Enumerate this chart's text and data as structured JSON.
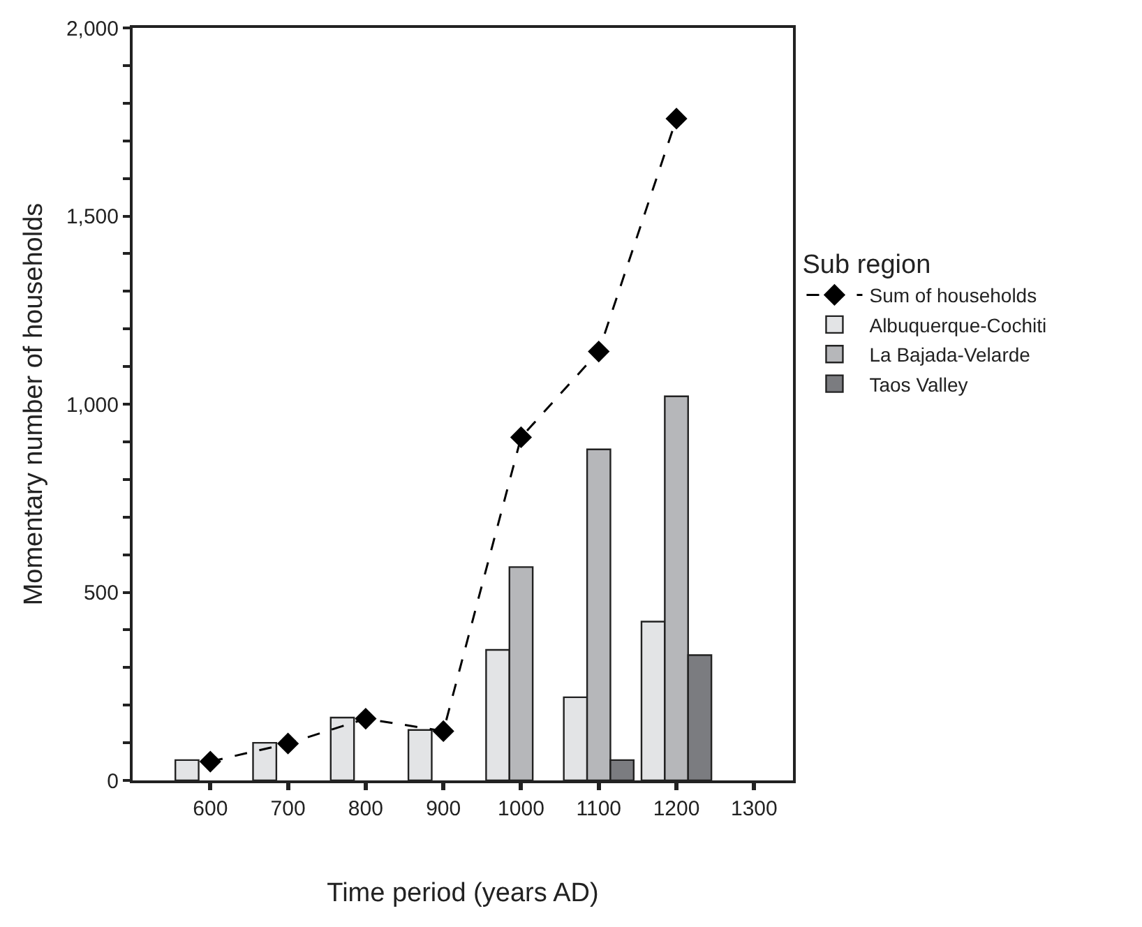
{
  "chart_data": {
    "type": "bar",
    "xlabel": "Time period (years AD)",
    "ylabel": "Momentary number of households",
    "legend_title": "Sub region",
    "categories": [
      "600",
      "700",
      "800",
      "900",
      "1000",
      "1100",
      "1200",
      "1300"
    ],
    "series": [
      {
        "name": "Sum of households",
        "type": "line",
        "color": "#000000",
        "marker": "diamond",
        "line_style": "dashed",
        "values": [
          50,
          98,
          164,
          131,
          912,
          1140,
          1759,
          null
        ]
      },
      {
        "name": "Albuquerque-Cochiti",
        "color": "#e3e4e6",
        "values": [
          54,
          100,
          167,
          134,
          347,
          221,
          422,
          null
        ]
      },
      {
        "name": "La Bajada-Velarde",
        "color": "#b6b7ba",
        "values": [
          null,
          null,
          null,
          null,
          567,
          880,
          1021,
          null
        ]
      },
      {
        "name": "Taos Valley",
        "color": "#7b7c80",
        "values": [
          null,
          null,
          null,
          null,
          null,
          54,
          333,
          null
        ]
      }
    ],
    "ylim": [
      0,
      2000
    ],
    "yticks": [
      0,
      {
        "value": 100,
        "label": null
      },
      {
        "value": 200,
        "label": null
      },
      {
        "value": 300,
        "label": null
      },
      {
        "value": 400,
        "label": null
      },
      {
        "value": 500,
        "label": "500"
      },
      {
        "value": 600,
        "label": null
      },
      {
        "value": 700,
        "label": null
      },
      {
        "value": 800,
        "label": null
      },
      {
        "value": 900,
        "label": null
      },
      {
        "value": 1000,
        "label": "1,000"
      },
      {
        "value": 1100,
        "label": null
      },
      {
        "value": 1200,
        "label": null
      },
      {
        "value": 1300,
        "label": null
      },
      {
        "value": 1400,
        "label": null
      },
      {
        "value": 1500,
        "label": "1,500"
      },
      {
        "value": 1600,
        "label": null
      },
      {
        "value": 1700,
        "label": null
      },
      {
        "value": 1800,
        "label": null
      },
      {
        "value": 1900,
        "label": null
      },
      {
        "value": 2000,
        "label": "2,000"
      }
    ],
    "legend": "right"
  }
}
